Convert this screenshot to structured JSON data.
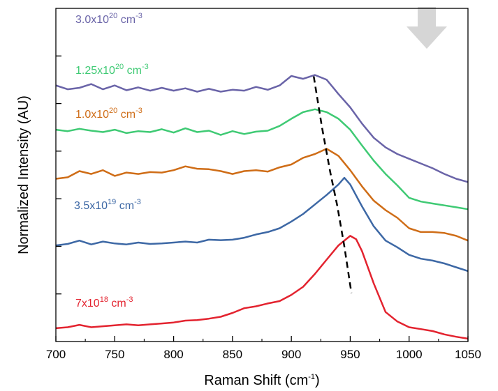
{
  "chart_data": {
    "type": "line",
    "xlabel_main": "Raman Shift (cm",
    "xlabel_sup": "-1",
    "xlabel_end": ")",
    "ylabel": "Normalized Intensity (AU)",
    "xlim": [
      700,
      1050
    ],
    "x_ticks": [
      700,
      750,
      800,
      850,
      900,
      950,
      1000,
      1050
    ],
    "x_tick_labels": [
      "700",
      "750",
      "800",
      "850",
      "900",
      "950",
      "1000",
      "1050"
    ],
    "y_ticks": [
      1,
      2,
      3,
      4,
      5,
      6
    ],
    "ylim": [
      0,
      7
    ],
    "grid": false,
    "arrow_color": "#cfcfcf",
    "guide_line": {
      "style": "dashed",
      "color": "#000000",
      "points": [
        [
          919,
          5.57
        ],
        [
          926,
          4.5
        ],
        [
          933,
          3.56
        ],
        [
          939,
          2.85
        ],
        [
          945,
          2.0
        ],
        [
          951,
          1.02
        ]
      ]
    },
    "series": [
      {
        "name": "3.0x10",
        "name_sup": "20",
        "name_unit": " cm",
        "name_unit_sup": "-3",
        "color": "#6a64a8",
        "x": [
          700,
          710,
          720,
          730,
          740,
          750,
          760,
          770,
          780,
          790,
          800,
          810,
          820,
          830,
          840,
          850,
          860,
          870,
          880,
          890,
          900,
          910,
          920,
          930,
          940,
          950,
          960,
          970,
          980,
          990,
          1000,
          1010,
          1020,
          1030,
          1040,
          1050
        ],
        "values": [
          5.38,
          5.3,
          5.33,
          5.41,
          5.3,
          5.38,
          5.28,
          5.34,
          5.27,
          5.33,
          5.27,
          5.32,
          5.25,
          5.31,
          5.25,
          5.29,
          5.27,
          5.35,
          5.29,
          5.38,
          5.58,
          5.52,
          5.6,
          5.5,
          5.2,
          4.92,
          4.58,
          4.28,
          4.08,
          3.94,
          3.84,
          3.74,
          3.64,
          3.52,
          3.42,
          3.35
        ]
      },
      {
        "name": "1.25x10",
        "name_sup": "20",
        "name_unit": " cm",
        "name_unit_sup": "-3",
        "color": "#3fca74",
        "x": [
          700,
          710,
          720,
          730,
          740,
          750,
          760,
          770,
          780,
          790,
          800,
          810,
          820,
          830,
          840,
          850,
          860,
          870,
          880,
          890,
          900,
          910,
          920,
          930,
          940,
          950,
          960,
          970,
          980,
          990,
          1000,
          1010,
          1020,
          1030,
          1040,
          1050
        ],
        "values": [
          4.45,
          4.42,
          4.47,
          4.43,
          4.4,
          4.45,
          4.38,
          4.42,
          4.4,
          4.46,
          4.39,
          4.48,
          4.4,
          4.43,
          4.34,
          4.42,
          4.36,
          4.41,
          4.43,
          4.53,
          4.68,
          4.82,
          4.88,
          4.82,
          4.68,
          4.45,
          4.12,
          3.8,
          3.52,
          3.28,
          3.02,
          2.94,
          2.9,
          2.86,
          2.82,
          2.78
        ]
      },
      {
        "name": "1.0x10",
        "name_sup": "20",
        "name_unit": " cm",
        "name_unit_sup": "-3",
        "color": "#cf6d17",
        "x": [
          700,
          710,
          720,
          730,
          740,
          750,
          760,
          770,
          780,
          790,
          800,
          810,
          820,
          830,
          840,
          850,
          860,
          870,
          880,
          890,
          900,
          910,
          920,
          930,
          940,
          950,
          960,
          970,
          980,
          990,
          1000,
          1010,
          1020,
          1030,
          1040,
          1050
        ],
        "values": [
          3.42,
          3.45,
          3.58,
          3.52,
          3.6,
          3.48,
          3.55,
          3.52,
          3.56,
          3.55,
          3.6,
          3.68,
          3.63,
          3.62,
          3.58,
          3.52,
          3.58,
          3.6,
          3.57,
          3.66,
          3.72,
          3.86,
          3.94,
          4.05,
          3.9,
          3.6,
          3.26,
          2.96,
          2.76,
          2.6,
          2.38,
          2.3,
          2.3,
          2.28,
          2.22,
          2.12
        ]
      },
      {
        "name": "3.5x10",
        "name_sup": "19",
        "name_unit": " cm",
        "name_unit_sup": "-3",
        "color": "#3d68a5",
        "x": [
          700,
          710,
          720,
          730,
          740,
          750,
          760,
          770,
          780,
          790,
          800,
          810,
          820,
          830,
          840,
          850,
          860,
          870,
          880,
          890,
          900,
          910,
          920,
          930,
          940,
          945,
          950,
          960,
          970,
          980,
          990,
          1000,
          1010,
          1020,
          1030,
          1040,
          1050
        ],
        "values": [
          2.02,
          2.05,
          2.12,
          2.04,
          2.1,
          2.06,
          2.04,
          2.08,
          2.05,
          2.06,
          2.08,
          2.1,
          2.08,
          2.14,
          2.13,
          2.14,
          2.18,
          2.25,
          2.3,
          2.38,
          2.52,
          2.68,
          2.88,
          3.08,
          3.3,
          3.44,
          3.3,
          2.84,
          2.42,
          2.12,
          1.98,
          1.82,
          1.74,
          1.7,
          1.64,
          1.56,
          1.48
        ]
      },
      {
        "name": "7x10",
        "name_sup": "18",
        "name_unit": " cm",
        "name_unit_sup": "-3",
        "color": "#e3232f",
        "x": [
          700,
          710,
          720,
          730,
          740,
          750,
          760,
          770,
          780,
          790,
          800,
          810,
          820,
          830,
          840,
          850,
          860,
          870,
          880,
          890,
          900,
          910,
          920,
          930,
          940,
          950,
          955,
          960,
          970,
          980,
          990,
          1000,
          1010,
          1020,
          1030,
          1040,
          1050
        ],
        "values": [
          0.28,
          0.3,
          0.35,
          0.3,
          0.32,
          0.34,
          0.36,
          0.34,
          0.36,
          0.38,
          0.4,
          0.44,
          0.45,
          0.48,
          0.52,
          0.6,
          0.7,
          0.74,
          0.8,
          0.85,
          0.98,
          1.15,
          1.42,
          1.72,
          2.02,
          2.22,
          2.15,
          1.9,
          1.22,
          0.62,
          0.42,
          0.3,
          0.26,
          0.22,
          0.15,
          0.1,
          0.06
        ]
      }
    ]
  }
}
